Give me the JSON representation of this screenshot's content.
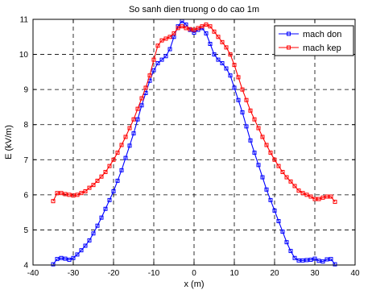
{
  "chart_data": {
    "type": "line",
    "title": "So sanh dien truong o do cao 1m",
    "xlabel": "x (m)",
    "ylabel": "E (kV/m)",
    "xlim": [
      -40,
      40
    ],
    "ylim": [
      4,
      11
    ],
    "xticks": [
      "-40",
      "-30",
      "-20",
      "-10",
      "0",
      "10",
      "20",
      "30",
      "40"
    ],
    "yticks": [
      "4",
      "5",
      "6",
      "7",
      "8",
      "9",
      "10",
      "11"
    ],
    "grid": true,
    "legend_position": "top-right",
    "x": [
      -35,
      -34,
      -33,
      -32,
      -31,
      -30,
      -29,
      -28,
      -27,
      -26,
      -25,
      -24,
      -23,
      -22,
      -21,
      -20,
      -19,
      -18,
      -17,
      -16,
      -15,
      -14,
      -13,
      -12,
      -11,
      -10,
      -9,
      -8,
      -7,
      -6,
      -5,
      -4,
      -3,
      -2,
      -1,
      0,
      1,
      2,
      3,
      4,
      5,
      6,
      7,
      8,
      9,
      10,
      11,
      12,
      13,
      14,
      15,
      16,
      17,
      18,
      19,
      20,
      21,
      22,
      23,
      24,
      25,
      26,
      27,
      28,
      29,
      30,
      31,
      32,
      33,
      34,
      35
    ],
    "series": [
      {
        "name": "mach don",
        "color": "#0000ff",
        "marker": "square",
        "values": [
          4.02,
          4.17,
          4.2,
          4.18,
          4.15,
          4.2,
          4.3,
          4.42,
          4.55,
          4.7,
          4.9,
          5.12,
          5.35,
          5.6,
          5.85,
          6.1,
          6.4,
          6.7,
          7.05,
          7.4,
          7.75,
          8.15,
          8.55,
          8.9,
          9.25,
          9.55,
          9.75,
          9.85,
          9.95,
          10.15,
          10.5,
          10.8,
          10.95,
          10.85,
          10.7,
          10.62,
          10.7,
          10.75,
          10.6,
          10.3,
          10.0,
          9.85,
          9.75,
          9.6,
          9.4,
          9.05,
          8.7,
          8.35,
          7.95,
          7.55,
          7.2,
          6.85,
          6.5,
          6.15,
          5.85,
          5.55,
          5.25,
          4.95,
          4.65,
          4.4,
          4.2,
          4.13,
          4.13,
          4.14,
          4.15,
          4.18,
          4.12,
          4.1,
          4.16,
          4.17,
          4.02
        ]
      },
      {
        "name": "mach kep",
        "color": "#ff0000",
        "marker": "square",
        "values": [
          5.82,
          6.05,
          6.05,
          6.02,
          6.0,
          5.98,
          6.0,
          6.05,
          6.1,
          6.2,
          6.28,
          6.4,
          6.52,
          6.65,
          6.82,
          7.0,
          7.2,
          7.42,
          7.65,
          7.9,
          8.15,
          8.45,
          8.75,
          9.05,
          9.4,
          9.85,
          10.25,
          10.4,
          10.45,
          10.5,
          10.6,
          10.75,
          10.8,
          10.75,
          10.72,
          10.7,
          10.75,
          10.8,
          10.85,
          10.8,
          10.65,
          10.5,
          10.35,
          10.2,
          10.0,
          9.7,
          9.35,
          9.0,
          8.7,
          8.4,
          8.15,
          7.9,
          7.65,
          7.42,
          7.2,
          7.0,
          6.82,
          6.65,
          6.5,
          6.38,
          6.25,
          6.12,
          6.05,
          6.0,
          5.95,
          5.88,
          5.88,
          5.92,
          5.95,
          5.95,
          5.8
        ]
      }
    ]
  }
}
